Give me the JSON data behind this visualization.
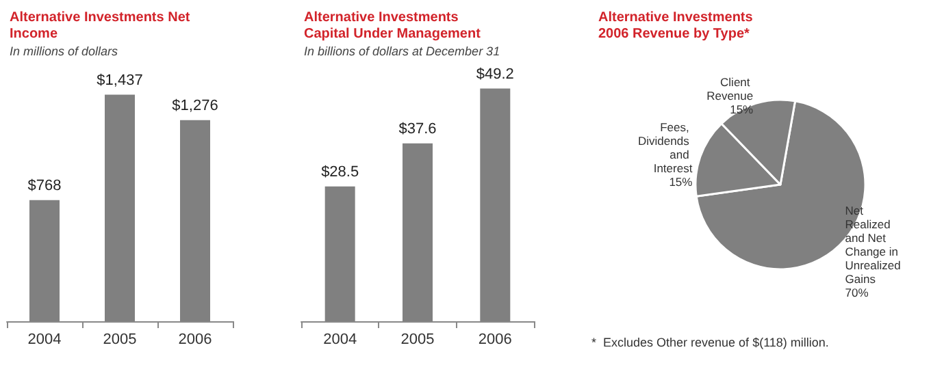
{
  "chart_data": [
    {
      "type": "bar",
      "title": "Alternative Investments Net Income",
      "subtitle": "In millions of dollars",
      "categories": [
        "2004",
        "2005",
        "2006"
      ],
      "values": [
        768,
        1437,
        1276
      ],
      "value_labels": [
        "$768",
        "$1,437",
        "$1,276"
      ],
      "color": "#808080",
      "tick_labels": "x",
      "grid": false
    },
    {
      "type": "bar",
      "title": "Alternative Investments Capital Under Management",
      "subtitle": "In billions of dollars at December 31",
      "categories": [
        "2004",
        "2005",
        "2006"
      ],
      "values": [
        28.5,
        37.6,
        49.2
      ],
      "value_labels": [
        "$28.5",
        "$37.6",
        "$49.2"
      ],
      "color": "#808080",
      "tick_labels": "x",
      "grid": false
    },
    {
      "type": "pie",
      "title": "Alternative Investments 2006 Revenue by Type*",
      "categories": [
        "Net Realized and Net Change in Unrealized Gains",
        "Fees, Dividends and Interest",
        "Client Revenue"
      ],
      "values": [
        70,
        15,
        15
      ],
      "value_labels": [
        "70%",
        "15%",
        "15%"
      ],
      "colors": [
        "#808080",
        "#808080",
        "#808080"
      ],
      "annotations": [
        "*  Excludes Other revenue of $(118) million."
      ]
    }
  ]
}
